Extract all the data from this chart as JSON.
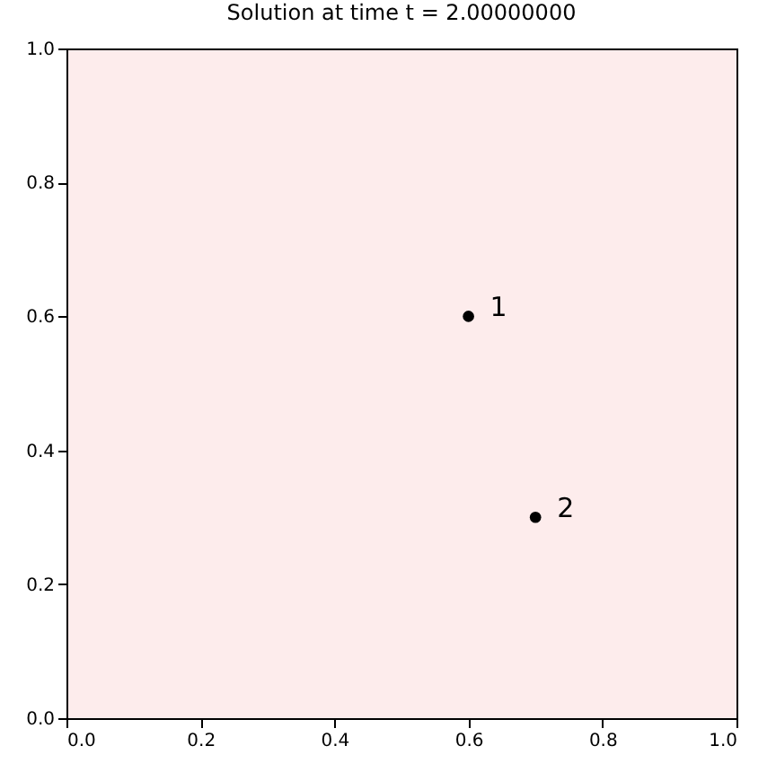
{
  "chart_data": {
    "type": "scatter",
    "title": "Solution at time t =     2.00000000",
    "x": [
      0.6,
      0.7
    ],
    "series": [
      {
        "color": "#000000",
        "values": [
          0.6,
          0.3
        ]
      }
    ],
    "marker": "circle",
    "annotations": [
      {
        "text": "1",
        "x": 0.6,
        "y": 0.6
      },
      {
        "text": "2",
        "x": 0.7,
        "y": 0.3
      }
    ],
    "xlim": [
      0,
      1
    ],
    "ylim": [
      0,
      1
    ],
    "xticks": [
      {
        "value": 0,
        "label": "0.0"
      },
      {
        "value": 0.2,
        "label": "0.2"
      },
      {
        "value": 0.4,
        "label": "0.4"
      },
      {
        "value": 0.6,
        "label": "0.6"
      },
      {
        "value": 0.8,
        "label": "0.8"
      },
      {
        "value": 1,
        "label": "1.0"
      }
    ],
    "yticks": [
      {
        "value": 0,
        "label": "0.0"
      },
      {
        "value": 0.2,
        "label": "0.2"
      },
      {
        "value": 0.4,
        "label": "0.4"
      },
      {
        "value": 0.6,
        "label": "0.6"
      },
      {
        "value": 0.8,
        "label": "0.8"
      },
      {
        "value": 1,
        "label": "1.0"
      }
    ],
    "grid": false
  }
}
